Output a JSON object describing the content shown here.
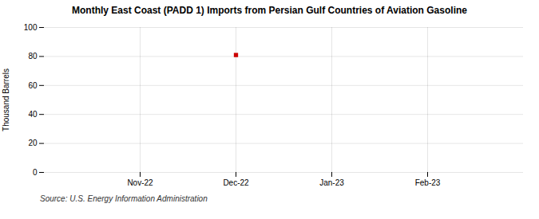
{
  "chart_data": {
    "type": "scatter",
    "title": "Monthly East Coast (PADD 1) Imports from Persian Gulf Countries of Aviation Gasoline",
    "ylabel": "Thousand Barrels",
    "source": "Source: U.S. Energy Information Administration",
    "categories": [
      "Nov-22",
      "Dec-22",
      "Jan-23",
      "Feb-23"
    ],
    "values": [
      null,
      81,
      null,
      null
    ],
    "color": "#cc0000",
    "marker": "square",
    "ylim": [
      0,
      100
    ],
    "yticks": [
      0,
      20,
      40,
      60,
      80,
      100
    ],
    "grid": true
  }
}
